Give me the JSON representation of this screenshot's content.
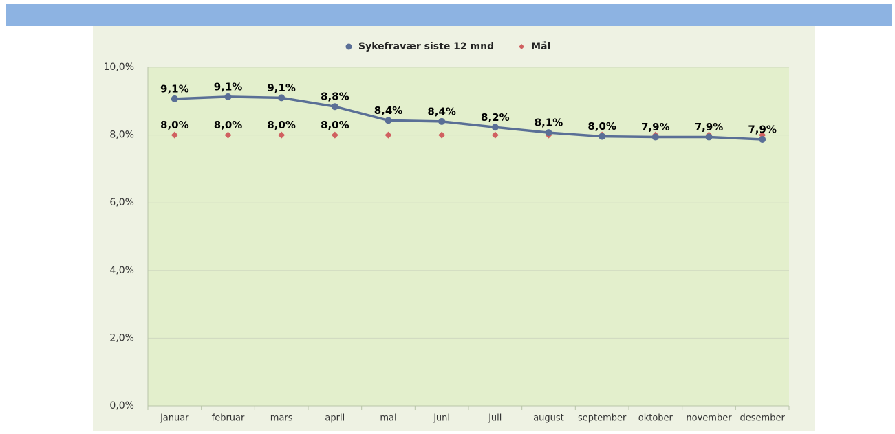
{
  "chart_data": {
    "type": "line",
    "categories": [
      "januar",
      "februar",
      "mars",
      "april",
      "mai",
      "juni",
      "juli",
      "august",
      "september",
      "oktober",
      "november",
      "desember"
    ],
    "series": [
      {
        "name": "Sykefravær siste 12 mnd",
        "color": "#5a6f96",
        "marker": "circle",
        "values": [
          9.07,
          9.13,
          9.1,
          8.84,
          8.43,
          8.4,
          8.23,
          8.07,
          7.96,
          7.94,
          7.94,
          7.87
        ],
        "value_labels": [
          "9,1%",
          "9,1%",
          "9,1%",
          "8,8%",
          "8,4%",
          "8,4%",
          "8,2%",
          "8,1%",
          "8,0%",
          "7,9%",
          "7,9%",
          "7,9%"
        ]
      },
      {
        "name": "Mål",
        "color": "#d06060",
        "marker": "diamond",
        "line": false,
        "values": [
          8,
          8,
          8,
          8,
          8,
          8,
          8,
          8,
          8,
          8,
          8,
          8
        ],
        "value_labels": [
          "8,0%",
          "8,0%",
          "8,0%",
          "8,0%",
          null,
          null,
          null,
          null,
          null,
          null,
          null,
          null
        ]
      }
    ],
    "ylim": [
      0,
      10
    ],
    "yticks": [
      {
        "value": 0,
        "label": "0,0%"
      },
      {
        "value": 2,
        "label": "2,0%"
      },
      {
        "value": 4,
        "label": "4,0%"
      },
      {
        "value": 6,
        "label": "6,0%"
      },
      {
        "value": 8,
        "label": "8,0%"
      },
      {
        "value": 10,
        "label": "10,0%"
      }
    ],
    "grid": true,
    "legend": "top"
  }
}
